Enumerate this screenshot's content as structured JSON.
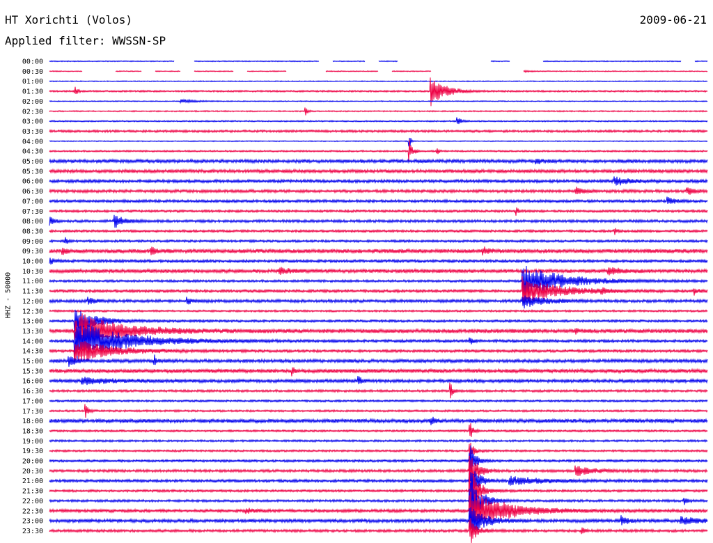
{
  "header": {
    "station": "HT Xorichti (Volos)",
    "date": "2009-06-21",
    "filter": "Applied filter: WWSSN-SP"
  },
  "chart_data": {
    "type": "line",
    "title": "HT Xorichti (Volos)",
    "subtitle": "Applied filter: WWSSN-SP",
    "ylabel": "HHZ - 50000",
    "xlabel": "",
    "grid": false,
    "line_colors": [
      "#0000ee",
      "#ee0044"
    ],
    "rows": [
      {
        "label": "00:00",
        "noise": 0.6,
        "gaps": [
          [
            0.19,
            0.22
          ],
          [
            0.41,
            0.43
          ],
          [
            0.48,
            0.5
          ],
          [
            0.53,
            0.67
          ],
          [
            0.7,
            0.75
          ],
          [
            0.96,
            0.98
          ]
        ],
        "events": []
      },
      {
        "label": "00:30",
        "noise": 0.6,
        "gaps": [
          [
            0.05,
            0.1
          ],
          [
            0.14,
            0.16
          ],
          [
            0.2,
            0.22
          ],
          [
            0.28,
            0.3
          ],
          [
            0.36,
            0.42
          ],
          [
            0.5,
            0.52
          ],
          [
            0.58,
            0.72
          ]
        ],
        "events": [
          [
            0.71,
            4,
            0.01
          ]
        ]
      },
      {
        "label": "01:00",
        "noise": 0.6,
        "gaps": [],
        "events": []
      },
      {
        "label": "01:30",
        "noise": 1.0,
        "gaps": [],
        "events": [
          [
            0.04,
            6,
            0.003
          ],
          [
            0.58,
            22,
            0.02
          ]
        ]
      },
      {
        "label": "02:00",
        "noise": 0.6,
        "gaps": [],
        "events": [
          [
            0.2,
            3,
            0.02
          ]
        ]
      },
      {
        "label": "02:30",
        "noise": 0.8,
        "gaps": [],
        "events": [
          [
            0.39,
            6,
            0.003
          ]
        ]
      },
      {
        "label": "03:00",
        "noise": 0.8,
        "gaps": [],
        "events": [
          [
            0.62,
            6,
            0.006
          ]
        ]
      },
      {
        "label": "03:30",
        "noise": 1.4,
        "gaps": [],
        "events": []
      },
      {
        "label": "04:00",
        "noise": 0.6,
        "gaps": [],
        "events": [
          [
            0.547,
            14,
            0.002
          ]
        ]
      },
      {
        "label": "04:30",
        "noise": 1.0,
        "gaps": [],
        "events": [
          [
            0.547,
            16,
            0.005
          ],
          [
            0.59,
            5,
            0.002
          ]
        ]
      },
      {
        "label": "05:00",
        "noise": 2.0,
        "gaps": [],
        "events": [
          [
            0.74,
            4,
            0.01
          ]
        ]
      },
      {
        "label": "05:30",
        "noise": 2.0,
        "gaps": [],
        "events": []
      },
      {
        "label": "06:00",
        "noise": 1.8,
        "gaps": [],
        "events": [
          [
            0.86,
            6,
            0.02
          ]
        ]
      },
      {
        "label": "06:30",
        "noise": 1.8,
        "gaps": [],
        "events": [
          [
            0.8,
            5,
            0.01
          ],
          [
            0.97,
            5,
            0.01
          ]
        ]
      },
      {
        "label": "07:00",
        "noise": 1.6,
        "gaps": [],
        "events": [
          [
            0.94,
            5,
            0.01
          ]
        ]
      },
      {
        "label": "07:30",
        "noise": 1.4,
        "gaps": [],
        "events": [
          [
            0.71,
            6,
            0.003
          ]
        ]
      },
      {
        "label": "08:00",
        "noise": 1.6,
        "gaps": [],
        "events": [
          [
            0.0,
            10,
            0.005
          ],
          [
            0.1,
            10,
            0.012
          ]
        ]
      },
      {
        "label": "08:30",
        "noise": 1.4,
        "gaps": [],
        "events": [
          [
            0.86,
            5,
            0.003
          ]
        ]
      },
      {
        "label": "09:00",
        "noise": 1.4,
        "gaps": [],
        "events": [
          [
            0.025,
            5,
            0.003
          ]
        ]
      },
      {
        "label": "09:30",
        "noise": 2.4,
        "gaps": [],
        "events": [
          [
            0.02,
            6,
            0.004
          ],
          [
            0.155,
            7,
            0.005
          ],
          [
            0.66,
            5,
            0.01
          ]
        ]
      },
      {
        "label": "10:00",
        "noise": 1.6,
        "gaps": [],
        "events": [
          [
            0.0,
            4,
            0.01
          ]
        ]
      },
      {
        "label": "10:30",
        "noise": 2.2,
        "gaps": [],
        "events": [
          [
            0.35,
            5,
            0.015
          ],
          [
            0.85,
            5,
            0.02
          ]
        ]
      },
      {
        "label": "11:00",
        "noise": 1.4,
        "gaps": [],
        "events": [
          [
            0.72,
            25,
            0.055
          ]
        ]
      },
      {
        "label": "11:30",
        "noise": 1.6,
        "gaps": [],
        "events": [
          [
            0.72,
            20,
            0.05
          ],
          [
            0.84,
            4,
            0.005
          ],
          [
            0.98,
            5,
            0.005
          ]
        ]
      },
      {
        "label": "12:00",
        "noise": 1.8,
        "gaps": [],
        "events": [
          [
            0.06,
            5,
            0.01
          ],
          [
            0.21,
            7,
            0.004
          ],
          [
            0.72,
            10,
            0.03
          ]
        ]
      },
      {
        "label": "12:30",
        "noise": 1.2,
        "gaps": [],
        "events": []
      },
      {
        "label": "13:00",
        "noise": 1.4,
        "gaps": [],
        "events": [
          [
            0.04,
            18,
            0.03
          ]
        ]
      },
      {
        "label": "13:30",
        "noise": 2.4,
        "gaps": [],
        "events": [
          [
            0.04,
            28,
            0.06
          ],
          [
            0.8,
            6,
            0.003
          ]
        ]
      },
      {
        "label": "14:00",
        "noise": 1.6,
        "gaps": [],
        "events": [
          [
            0.04,
            30,
            0.07
          ],
          [
            0.64,
            5,
            0.004
          ]
        ]
      },
      {
        "label": "14:30",
        "noise": 1.6,
        "gaps": [],
        "events": [
          [
            0.04,
            18,
            0.05
          ]
        ]
      },
      {
        "label": "15:00",
        "noise": 2.0,
        "gaps": [],
        "events": [
          [
            0.03,
            8,
            0.01
          ],
          [
            0.16,
            8,
            0.003
          ]
        ]
      },
      {
        "label": "15:30",
        "noise": 2.2,
        "gaps": [],
        "events": [
          [
            0.37,
            6,
            0.003
          ]
        ]
      },
      {
        "label": "16:00",
        "noise": 2.0,
        "gaps": [],
        "events": [
          [
            0.05,
            5,
            0.04
          ],
          [
            0.47,
            7,
            0.004
          ]
        ]
      },
      {
        "label": "16:30",
        "noise": 1.4,
        "gaps": [],
        "events": [
          [
            0.61,
            12,
            0.004
          ]
        ]
      },
      {
        "label": "17:00",
        "noise": 1.2,
        "gaps": [],
        "events": []
      },
      {
        "label": "17:30",
        "noise": 1.2,
        "gaps": [],
        "events": [
          [
            0.055,
            10,
            0.004
          ]
        ]
      },
      {
        "label": "18:00",
        "noise": 2.2,
        "gaps": [],
        "events": [
          [
            0.58,
            6,
            0.006
          ]
        ]
      },
      {
        "label": "18:30",
        "noise": 1.2,
        "gaps": [],
        "events": [
          [
            0.64,
            12,
            0.004
          ]
        ]
      },
      {
        "label": "19:00",
        "noise": 1.2,
        "gaps": [],
        "events": []
      },
      {
        "label": "19:30",
        "noise": 1.2,
        "gaps": [],
        "events": [
          [
            0.64,
            14,
            0.006
          ]
        ]
      },
      {
        "label": "20:00",
        "noise": 1.4,
        "gaps": [],
        "events": [
          [
            0.64,
            22,
            0.008
          ]
        ]
      },
      {
        "label": "20:30",
        "noise": 1.6,
        "gaps": [],
        "events": [
          [
            0.64,
            30,
            0.01
          ],
          [
            0.8,
            10,
            0.02
          ]
        ]
      },
      {
        "label": "21:00",
        "noise": 1.6,
        "gaps": [],
        "events": [
          [
            0.64,
            34,
            0.01
          ],
          [
            0.7,
            6,
            0.05
          ]
        ]
      },
      {
        "label": "21:30",
        "noise": 1.4,
        "gaps": [],
        "events": [
          [
            0.64,
            36,
            0.012
          ]
        ]
      },
      {
        "label": "22:00",
        "noise": 1.4,
        "gaps": [],
        "events": [
          [
            0.64,
            38,
            0.015
          ],
          [
            0.965,
            6,
            0.005
          ]
        ]
      },
      {
        "label": "22:30",
        "noise": 1.8,
        "gaps": [],
        "events": [
          [
            0.64,
            30,
            0.05
          ],
          [
            0.3,
            4,
            0.01
          ]
        ]
      },
      {
        "label": "23:00",
        "noise": 2.0,
        "gaps": [],
        "events": [
          [
            0.64,
            22,
            0.02
          ],
          [
            0.87,
            6,
            0.01
          ],
          [
            0.96,
            5,
            0.03
          ]
        ]
      },
      {
        "label": "23:30",
        "noise": 1.6,
        "gaps": [],
        "events": [
          [
            0.64,
            18,
            0.01
          ],
          [
            0.81,
            5,
            0.003
          ]
        ]
      }
    ]
  }
}
